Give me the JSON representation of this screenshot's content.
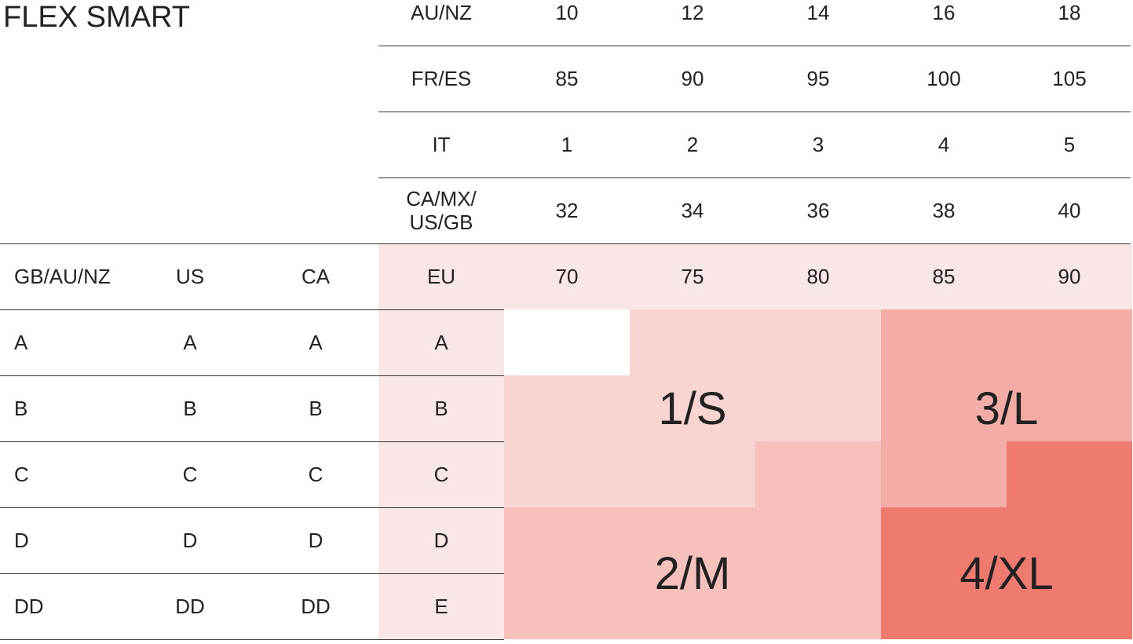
{
  "title": "FLEX SMART",
  "header_rows": [
    {
      "label": [
        "AU/NZ"
      ],
      "values": [
        10,
        12,
        14,
        16,
        18
      ]
    },
    {
      "label": [
        "FR/ES"
      ],
      "values": [
        85,
        90,
        95,
        100,
        105
      ]
    },
    {
      "label": [
        "IT"
      ],
      "values": [
        1,
        2,
        3,
        4,
        5
      ]
    },
    {
      "label": [
        "CA/MX/",
        "US/GB"
      ],
      "values": [
        32,
        34,
        36,
        38,
        40
      ]
    }
  ],
  "band_header": [
    "GB/AU/NZ",
    "US",
    "CA",
    "EU"
  ],
  "band_values": [
    70,
    75,
    80,
    85,
    90
  ],
  "rows": [
    [
      "A",
      "A",
      "A",
      "A"
    ],
    [
      "B",
      "B",
      "B",
      "B"
    ],
    [
      "C",
      "C",
      "C",
      "C"
    ],
    [
      "D",
      "D",
      "D",
      "D"
    ],
    [
      "DD",
      "DD",
      "DD",
      "E"
    ]
  ],
  "sizes": [
    "1/S",
    "2/M",
    "3/L",
    "4/XL"
  ]
}
